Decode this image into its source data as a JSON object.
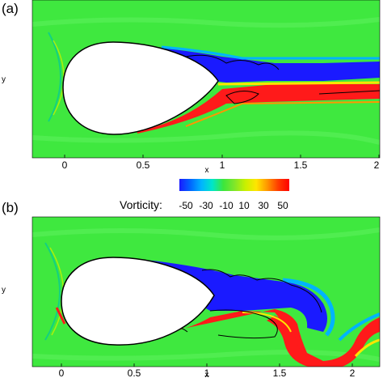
{
  "panels": [
    {
      "label": "(a)",
      "xticks": [
        "0",
        "0.5",
        "1",
        "1.5",
        "2"
      ],
      "xlabel": "x",
      "ylabel": "y"
    },
    {
      "label": "(b)",
      "xticks": [
        "0",
        "0.5",
        "1",
        "1.5",
        "2"
      ],
      "xlabel": "x",
      "ylabel": "y"
    }
  ],
  "colorbar": {
    "title": "Vorticity:",
    "ticks": [
      "-50",
      "-30",
      "-10",
      "10",
      "30",
      "50"
    ],
    "colors": [
      "#1a1aff",
      "#0066ff",
      "#00b4ff",
      "#00e6c8",
      "#3ce63c",
      "#7fe62a",
      "#c8f000",
      "#ffe600",
      "#ff9600",
      "#ff3c00",
      "#ff0000"
    ]
  },
  "colors": {
    "background_field": "#3fe83f",
    "negative_vorticity": "#1a1aff",
    "positive_vorticity": "#ff1a1a",
    "body": "#ffffff"
  }
}
